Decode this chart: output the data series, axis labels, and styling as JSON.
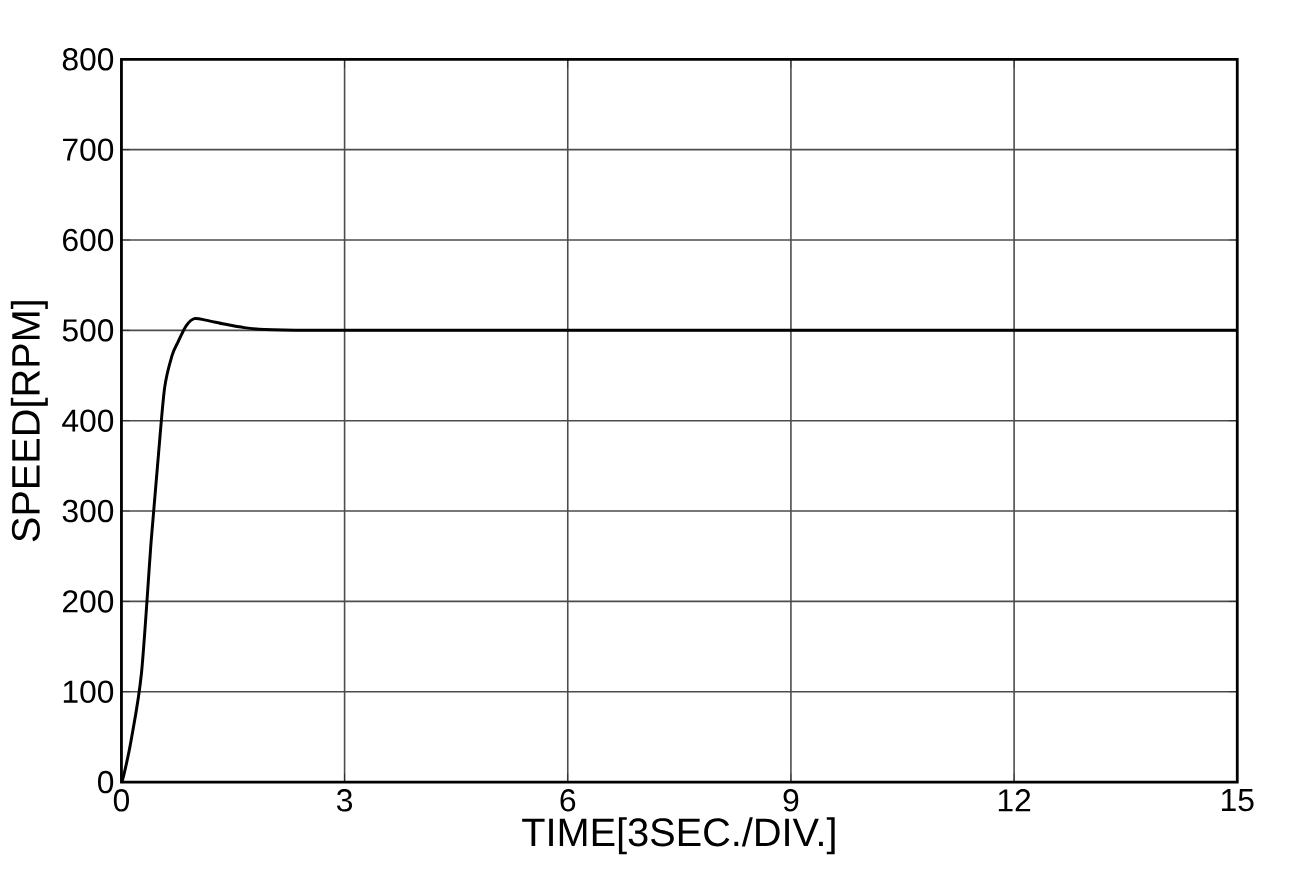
{
  "chart_data": {
    "type": "line",
    "xlabel": "TIME[3SEC./DIV.]",
    "ylabel": "SPEED[RPM]",
    "x": [
      0,
      0.03,
      0.13,
      0.27,
      0.4,
      0.49,
      0.58,
      0.68,
      0.76,
      0.87,
      0.98,
      1.15,
      1.38,
      1.65,
      1.92,
      2.5,
      4,
      8,
      12,
      15
    ],
    "series": [
      {
        "color": "#000000",
        "values": [
          0,
          7,
          46,
          121,
          267,
          355,
          436,
          472,
          487,
          505,
          513,
          511,
          507,
          503,
          501,
          500,
          500,
          500,
          500,
          500
        ]
      }
    ],
    "xlim": [
      0,
      15
    ],
    "ylim": [
      0,
      800
    ],
    "xticks": [
      0,
      3,
      6,
      9,
      12,
      15
    ],
    "yticks": [
      0,
      100,
      200,
      300,
      400,
      500,
      600,
      700,
      800
    ],
    "grid": true,
    "marker": "none",
    "line_style": "solid"
  }
}
